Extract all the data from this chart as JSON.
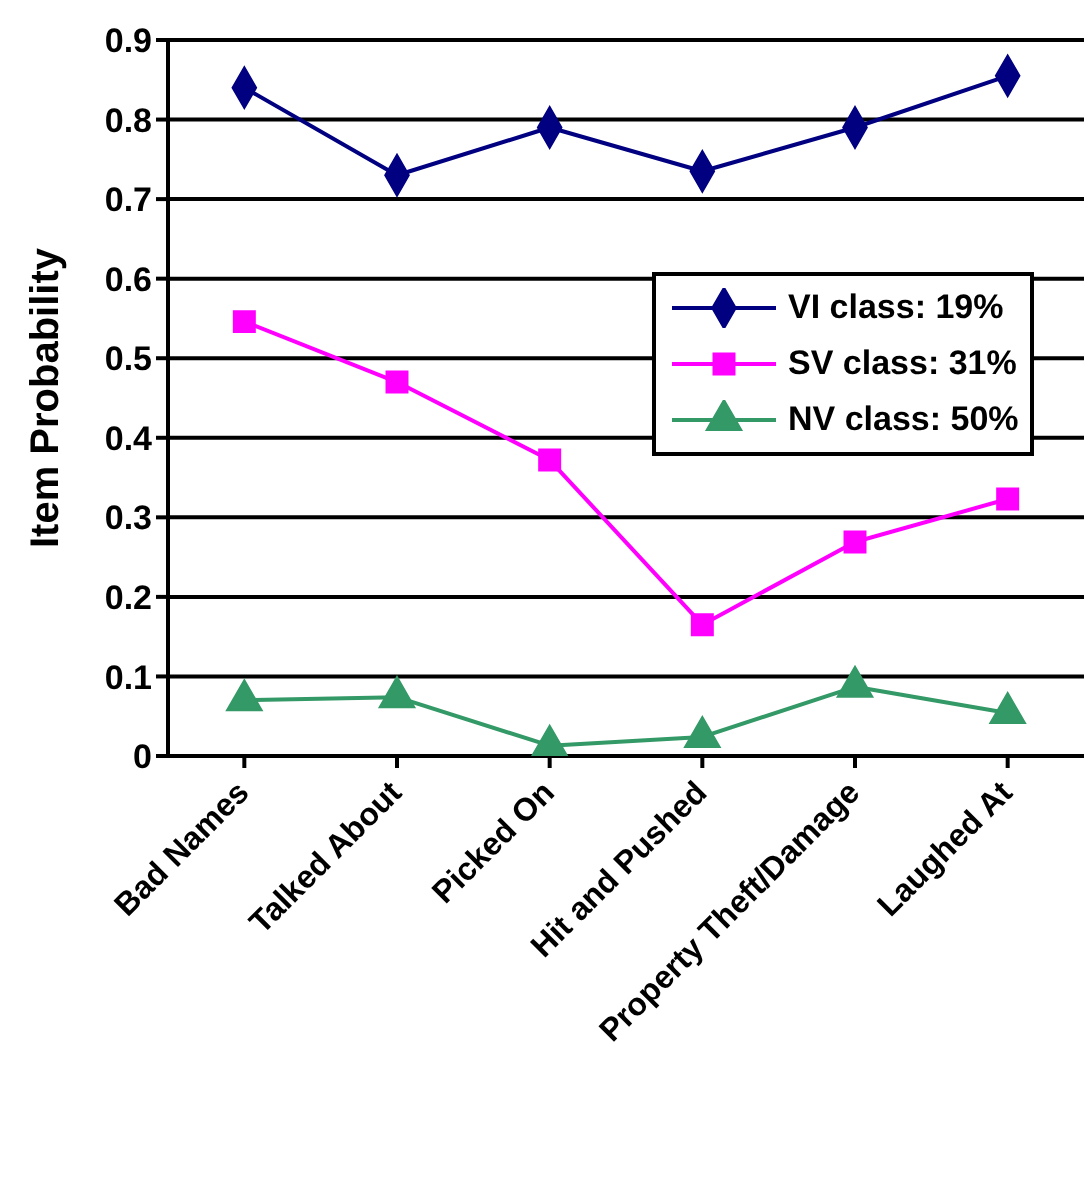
{
  "chart_data": {
    "type": "line",
    "ylabel": "Item Probability",
    "categories": [
      "Bad Names",
      "Talked About",
      "Picked On",
      "Hit and Pushed",
      "Property Theft/Damage",
      "Laughed At"
    ],
    "series": [
      {
        "name": "VI class: 19%",
        "color": "#000080",
        "marker": "diamond",
        "values": [
          0.84,
          0.73,
          0.79,
          0.735,
          0.79,
          0.855
        ]
      },
      {
        "name": "SV class: 31%",
        "color": "#ff00ff",
        "marker": "square",
        "values": [
          0.546,
          0.47,
          0.372,
          0.165,
          0.269,
          0.323
        ]
      },
      {
        "name": "NV class: 50%",
        "color": "#339966",
        "marker": "triangle",
        "values": [
          0.07,
          0.074,
          0.013,
          0.024,
          0.087,
          0.054
        ]
      }
    ],
    "ylim": [
      0,
      0.9
    ],
    "yticks": [
      {
        "value": 0,
        "label": "0"
      },
      0.1,
      0.2,
      0.3,
      0.4,
      0.5,
      0.6,
      0.7,
      0.8,
      0.9
    ],
    "grid": "y",
    "legend": "right",
    "line_style": "solid"
  }
}
